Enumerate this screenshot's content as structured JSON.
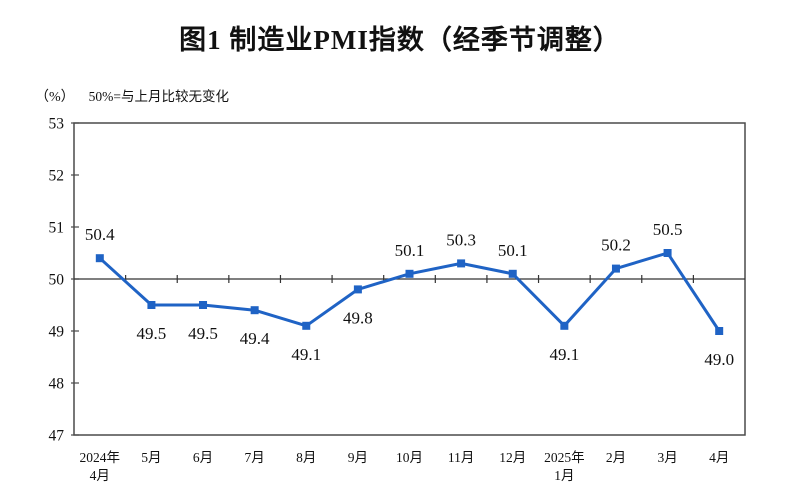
{
  "title": "图1 制造业PMI指数（经季节调整）",
  "unit_label": "（%）",
  "subtitle": "50%=与上月比较无变化",
  "chart_data": {
    "type": "line",
    "title": "图1 制造业PMI指数（经季节调整）",
    "xlabel": "",
    "ylabel": "（%）",
    "note": "50%=与上月比较无变化",
    "categories": [
      "2024年|4月",
      "5月",
      "6月",
      "7月",
      "8月",
      "9月",
      "10月",
      "11月",
      "12月",
      "2025年|1月",
      "2月",
      "3月",
      "4月"
    ],
    "values": [
      50.4,
      49.5,
      49.5,
      49.4,
      49.1,
      49.8,
      50.1,
      50.3,
      50.1,
      49.1,
      50.2,
      50.5,
      49.0
    ],
    "ylim": [
      47,
      53
    ],
    "y_ticks": [
      47,
      48,
      49,
      50,
      51,
      52,
      53
    ],
    "reference_line": 50,
    "grid": false,
    "legend": "none",
    "marker": "square",
    "data_labels": true,
    "line_color": "#1f63c5",
    "marker_color": "#1f63c5",
    "axis_color": "#4a4a4a",
    "reference_line_color": "#333333",
    "label_color": "#111111"
  }
}
